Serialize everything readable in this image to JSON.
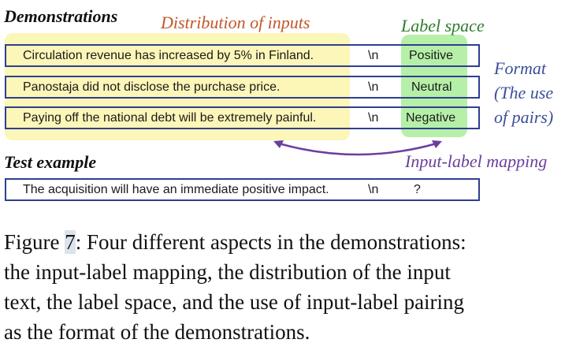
{
  "figure": {
    "demonstrations_heading": "Demonstrations",
    "distribution_label": "Distribution of inputs",
    "label_space_label": "Label space",
    "format_label_lines": [
      "Format",
      "(The use",
      "of pairs)"
    ],
    "mapping_label": "Input-label mapping",
    "test_heading": "Test example",
    "separator": "\\n",
    "demonstrations": [
      {
        "input": "Circulation revenue has increased by 5% in Finland.",
        "label": "Positive"
      },
      {
        "input": "Panostaja did not disclose the purchase price.",
        "label": "Neutral"
      },
      {
        "input": "Paying off the national debt will be extremely painful.",
        "label": "Negative"
      }
    ],
    "test": {
      "input": "The acquisition will have an immediate positive impact.",
      "label": "?"
    },
    "colors": {
      "distribution": "#c0582a",
      "label_space": "#2e7d2e",
      "format": "#3b4f9a",
      "mapping": "#6a3f9c",
      "box_border": "#2f3f8f",
      "input_highlight": "#fcf6b8",
      "label_highlight": "#b6f0a8"
    }
  },
  "caption": {
    "prefix": "Figure ",
    "number": "7",
    "lines": [
      ": Four different aspects in the demonstrations:",
      "the input-label mapping, the distribution of the input",
      "text, the label space, and the use of input-label pairing",
      "as the format of the demonstrations."
    ]
  }
}
